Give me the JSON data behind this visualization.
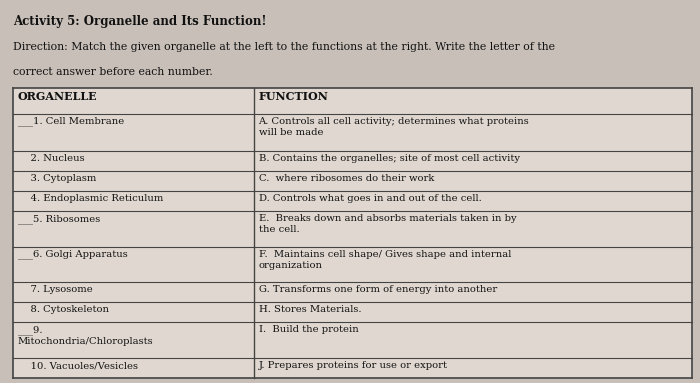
{
  "title": "Activity 5: Organelle and Its Function!",
  "direction1": "Direction: Match the given organelle at the left to the functions at the right. Write the letter of the",
  "direction2": "correct answer before each number.",
  "col1_header": "ORGANELLE",
  "col2_header": "FUNCTION",
  "rows": [
    [
      "___1. Cell Membrane",
      "A. Controls all cell activity; determines what proteins\nwill be made"
    ],
    [
      "    2. Nucleus",
      "B. Contains the organelles; site of most cell activity"
    ],
    [
      "    3. Cytoplasm",
      "C.  where ribosomes do their work"
    ],
    [
      "    4. Endoplasmic Reticulum",
      "D. Controls what goes in and out of the cell."
    ],
    [
      "___5. Ribosomes",
      "E.  Breaks down and absorbs materials taken in by\nthe cell."
    ],
    [
      "___6. Golgi Apparatus",
      "F.  Maintains cell shape/ Gives shape and internal\norganization"
    ],
    [
      "    7. Lysosome",
      "G. Transforms one form of energy into another"
    ],
    [
      "    8. Cytoskeleton",
      "H. Stores Materials."
    ],
    [
      "___9.\nMitochondria/Chloroplasts",
      "I.  Build the protein"
    ],
    [
      "    10. Vacuoles/Vesicles",
      "J. Prepares proteins for use or export"
    ]
  ],
  "bg_color": "#c8c0b8",
  "table_bg": "#e0d8d0",
  "border_color": "#444444",
  "text_color": "#111111",
  "title_fontsize": 8.5,
  "dir_fontsize": 7.8,
  "header_fontsize": 8.0,
  "body_fontsize": 7.2,
  "col_split": 0.355
}
